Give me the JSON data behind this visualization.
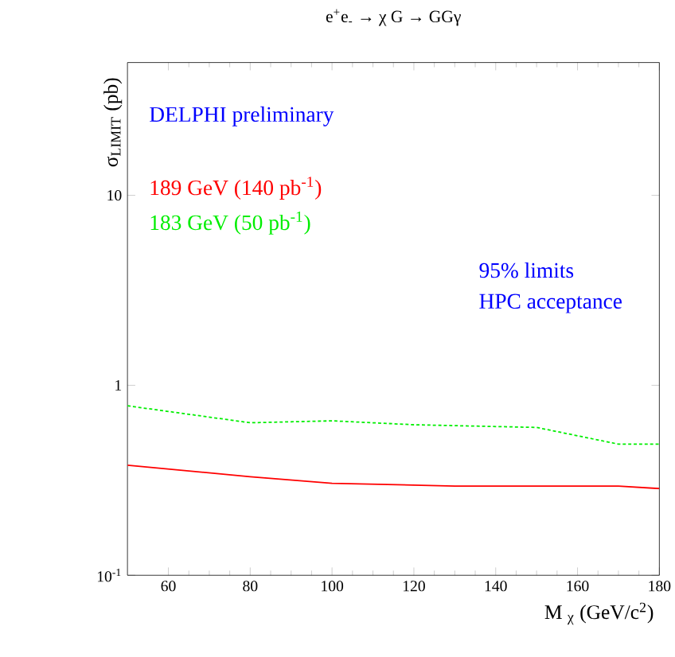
{
  "chart_data": {
    "type": "line",
    "title": "e$^{+}$e$_{-}$ → χ G → GGγ",
    "xlabel": "M $_{χ}$ (GeV/c$^{2}$)",
    "ylabel": "σ$_{LIMIT}$ (pb)",
    "log": "y",
    "xlim": [
      50,
      180
    ],
    "ylim": [
      0.1,
      50
    ],
    "xticks": [
      60,
      80,
      100,
      120,
      140,
      160,
      180
    ],
    "yticks": [
      {
        "value": 0.1,
        "label": "10$^{-1}$"
      },
      1,
      10
    ],
    "legend": "top left",
    "grid": false,
    "series": [
      {
        "name": "189 GeV (140 pb$^{-1}$)",
        "color": "#ff0000",
        "line_style": "solid",
        "x": [
          50,
          80,
          100,
          130,
          170,
          180
        ],
        "values": [
          0.38,
          0.33,
          0.305,
          0.295,
          0.295,
          0.286
        ]
      },
      {
        "name": "183 GeV (50 pb$^{-1}$)",
        "color": "#00ee00",
        "line_style": "dashed",
        "x": [
          50,
          80,
          100,
          120,
          150,
          170,
          180
        ],
        "values": [
          0.78,
          0.635,
          0.65,
          0.62,
          0.6,
          0.49,
          0.49
        ]
      }
    ],
    "annotations": [
      "DELPHI preliminary",
      "95% limits",
      "HPC acceptance"
    ]
  }
}
